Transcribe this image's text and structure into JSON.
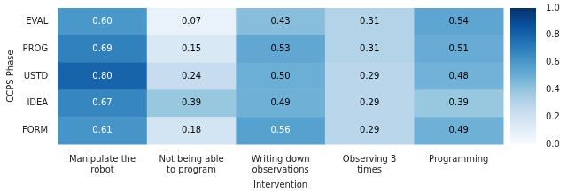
{
  "chart_data": {
    "type": "heatmap",
    "xlabel": "Intervention",
    "ylabel": "CCPS Phase",
    "categories": [
      "Manipulate the\nrobot",
      "Not being able\nto program",
      "Writing down\nobservations",
      "Observing 3\ntimes",
      "Programming"
    ],
    "rows": [
      "EVAL",
      "PROG",
      "USTD",
      "IDEA",
      "FORM"
    ],
    "values": [
      [
        0.6,
        0.07,
        0.43,
        0.31,
        0.54
      ],
      [
        0.69,
        0.15,
        0.53,
        0.31,
        0.51
      ],
      [
        0.8,
        0.24,
        0.5,
        0.29,
        0.48
      ],
      [
        0.67,
        0.39,
        0.49,
        0.29,
        0.39
      ],
      [
        0.61,
        0.18,
        0.56,
        0.29,
        0.49
      ]
    ],
    "value_labels": [
      [
        "0.60",
        "0.07",
        "0.43",
        "0.31",
        "0.54"
      ],
      [
        "0.69",
        "0.15",
        "0.53",
        "0.31",
        "0.51"
      ],
      [
        "0.80",
        "0.24",
        "0.50",
        "0.29",
        "0.48"
      ],
      [
        "0.67",
        "0.39",
        "0.49",
        "0.29",
        "0.39"
      ],
      [
        "0.61",
        "0.18",
        "0.56",
        "0.29",
        "0.49"
      ]
    ],
    "data_labels": true,
    "grid": false,
    "colorbar_lim": [
      0.0,
      1.0
    ],
    "colorbar_ticks": [
      {
        "value": 0.0,
        "label": "0.0"
      },
      0.2,
      0.4,
      0.6,
      0.8,
      {
        "value": 1.0,
        "label": "1.0"
      }
    ]
  }
}
